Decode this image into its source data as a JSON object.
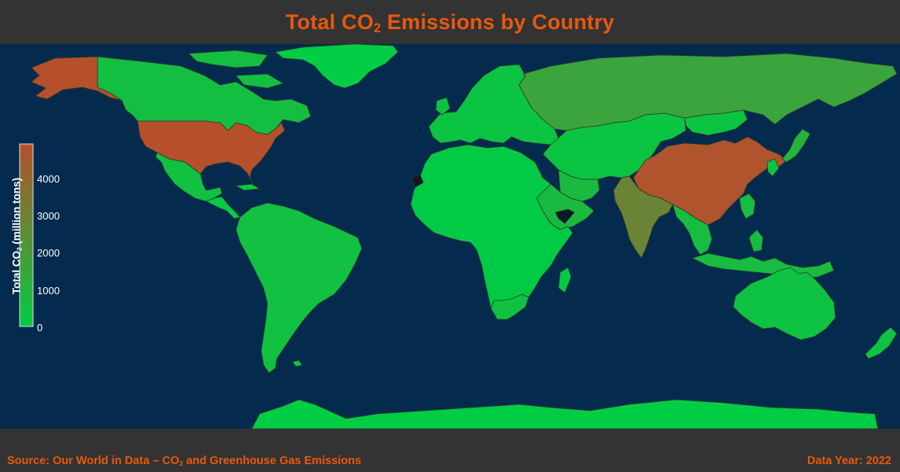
{
  "header": {
    "title_pre": "Total CO",
    "title_sub": "2",
    "title_post": " Emissions by Country"
  },
  "legend": {
    "title_pre": "Total CO",
    "title_sub": "2",
    "title_post": " (million tons)",
    "ticks": [
      "0",
      "1000",
      "2000",
      "3000",
      "4000"
    ],
    "min": 0,
    "max": 4900,
    "color_low": "#00cc44",
    "color_high": "#b5502b"
  },
  "footer": {
    "source_pre": "Source: Our World in Data – CO",
    "source_sub": "2",
    "source_post": " and Greenhouse Gas Emissions",
    "year_label": "Data Year: 2022"
  },
  "colors": {
    "ocean": "#042b4e",
    "panel": "#333333",
    "accent": "#e8590c",
    "no_data": "#0c1a28",
    "border": "#2a3a2a"
  },
  "map_data": {
    "regions": [
      {
        "name": "United States",
        "value": 4900
      },
      {
        "name": "Alaska",
        "value": 4900
      },
      {
        "name": "China",
        "value": 4750
      },
      {
        "name": "India",
        "value": 2900
      },
      {
        "name": "Russia",
        "value": 1600
      },
      {
        "name": "Japan",
        "value": 1000
      },
      {
        "name": "Iran",
        "value": 700
      },
      {
        "name": "Saudi Arabia",
        "value": 700
      },
      {
        "name": "Canada",
        "value": 550
      },
      {
        "name": "Indonesia",
        "value": 650
      },
      {
        "name": "Brazil",
        "value": 480
      },
      {
        "name": "Mexico",
        "value": 480
      },
      {
        "name": "Australia",
        "value": 390
      },
      {
        "name": "South Africa",
        "value": 400
      },
      {
        "name": "Europe",
        "value": 300
      },
      {
        "name": "Africa",
        "value": 60
      },
      {
        "name": "South America",
        "value": 80
      },
      {
        "name": "Antarctica",
        "value": 0
      },
      {
        "name": "Greenland",
        "value": 0
      }
    ]
  }
}
